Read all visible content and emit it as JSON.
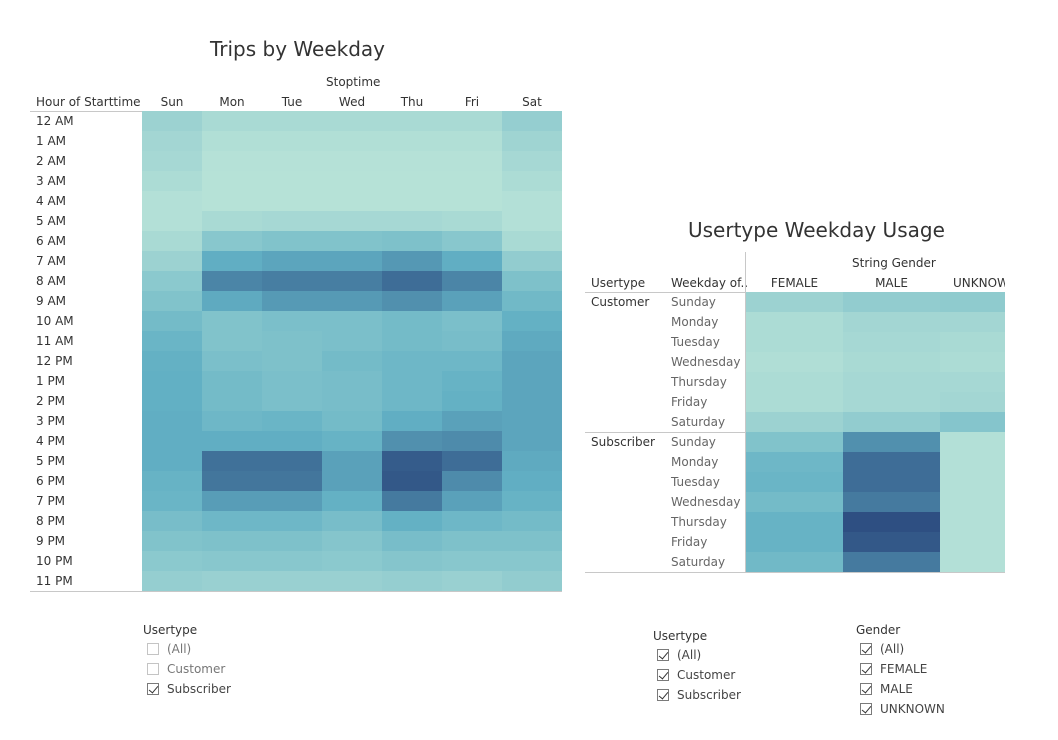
{
  "chart_data": [
    {
      "type": "heatmap",
      "title": "Trips by Weekday",
      "column_header": "Stoptime",
      "row_header": "Hour of Starttime",
      "columns": [
        "Sun",
        "Mon",
        "Tue",
        "Wed",
        "Thu",
        "Fri",
        "Sat"
      ],
      "rows": [
        "12 AM",
        "1 AM",
        "2 AM",
        "3 AM",
        "4 AM",
        "5 AM",
        "6 AM",
        "7 AM",
        "8 AM",
        "9 AM",
        "10 AM",
        "11 AM",
        "12 PM",
        "1 PM",
        "2 PM",
        "3 PM",
        "4 PM",
        "5 PM",
        "6 PM",
        "7 PM",
        "8 PM",
        "9 PM",
        "10 PM",
        "11 PM"
      ],
      "values": [
        [
          0.2,
          0.12,
          0.12,
          0.12,
          0.12,
          0.12,
          0.24
        ],
        [
          0.16,
          0.07,
          0.07,
          0.07,
          0.07,
          0.07,
          0.18
        ],
        [
          0.14,
          0.05,
          0.05,
          0.05,
          0.05,
          0.05,
          0.14
        ],
        [
          0.1,
          0.04,
          0.04,
          0.04,
          0.04,
          0.04,
          0.1
        ],
        [
          0.06,
          0.04,
          0.04,
          0.04,
          0.04,
          0.04,
          0.06
        ],
        [
          0.06,
          0.12,
          0.14,
          0.14,
          0.14,
          0.12,
          0.06
        ],
        [
          0.12,
          0.32,
          0.36,
          0.36,
          0.38,
          0.32,
          0.12
        ],
        [
          0.2,
          0.56,
          0.6,
          0.6,
          0.66,
          0.56,
          0.26
        ],
        [
          0.3,
          0.75,
          0.78,
          0.78,
          0.86,
          0.75,
          0.38
        ],
        [
          0.36,
          0.58,
          0.65,
          0.65,
          0.7,
          0.62,
          0.46
        ],
        [
          0.44,
          0.36,
          0.4,
          0.4,
          0.44,
          0.4,
          0.54
        ],
        [
          0.5,
          0.36,
          0.38,
          0.4,
          0.44,
          0.42,
          0.58
        ],
        [
          0.54,
          0.4,
          0.38,
          0.44,
          0.48,
          0.48,
          0.6
        ],
        [
          0.55,
          0.44,
          0.4,
          0.42,
          0.48,
          0.52,
          0.6
        ],
        [
          0.55,
          0.44,
          0.4,
          0.42,
          0.48,
          0.54,
          0.6
        ],
        [
          0.56,
          0.48,
          0.5,
          0.44,
          0.56,
          0.62,
          0.6
        ],
        [
          0.56,
          0.56,
          0.56,
          0.52,
          0.7,
          0.72,
          0.6
        ],
        [
          0.56,
          0.84,
          0.84,
          0.62,
          0.94,
          0.86,
          0.58
        ],
        [
          0.52,
          0.82,
          0.82,
          0.62,
          0.96,
          0.72,
          0.56
        ],
        [
          0.5,
          0.64,
          0.64,
          0.54,
          0.8,
          0.62,
          0.52
        ],
        [
          0.42,
          0.48,
          0.48,
          0.42,
          0.54,
          0.48,
          0.44
        ],
        [
          0.36,
          0.38,
          0.38,
          0.34,
          0.42,
          0.38,
          0.38
        ],
        [
          0.3,
          0.32,
          0.32,
          0.3,
          0.34,
          0.32,
          0.32
        ],
        [
          0.24,
          0.22,
          0.22,
          0.22,
          0.24,
          0.22,
          0.26
        ]
      ]
    },
    {
      "type": "heatmap",
      "title": "Usertype Weekday Usage",
      "column_header": "String Gender",
      "row_headers": [
        "Usertype",
        "Weekday of.."
      ],
      "columns": [
        "FEMALE",
        "MALE",
        "UNKNOW"
      ],
      "groups": [
        {
          "name": "Customer",
          "rows": [
            "Sunday",
            "Monday",
            "Tuesday",
            "Wednesday",
            "Thursday",
            "Friday",
            "Saturday"
          ],
          "values": [
            [
              0.2,
              0.26,
              0.28
            ],
            [
              0.1,
              0.16,
              0.16
            ],
            [
              0.1,
              0.14,
              0.12
            ],
            [
              0.08,
              0.12,
              0.1
            ],
            [
              0.1,
              0.14,
              0.14
            ],
            [
              0.1,
              0.14,
              0.16
            ],
            [
              0.2,
              0.26,
              0.34
            ]
          ]
        },
        {
          "name": "Subscriber",
          "rows": [
            "Sunday",
            "Monday",
            "Tuesday",
            "Wednesday",
            "Thursday",
            "Friday",
            "Saturday"
          ],
          "values": [
            [
              0.36,
              0.7,
              0.06
            ],
            [
              0.48,
              0.86,
              0.06
            ],
            [
              0.5,
              0.86,
              0.06
            ],
            [
              0.44,
              0.8,
              0.06
            ],
            [
              0.52,
              1.0,
              0.06
            ],
            [
              0.52,
              0.96,
              0.06
            ],
            [
              0.46,
              0.8,
              0.06
            ]
          ]
        }
      ]
    }
  ],
  "filters": {
    "left_usertype": {
      "title": "Usertype",
      "items": [
        {
          "label": "(All)",
          "checked": false
        },
        {
          "label": "Customer",
          "checked": false
        },
        {
          "label": "Subscriber",
          "checked": true
        }
      ]
    },
    "right_usertype": {
      "title": "Usertype",
      "items": [
        {
          "label": "(All)",
          "checked": true
        },
        {
          "label": "Customer",
          "checked": true
        },
        {
          "label": "Subscriber",
          "checked": true
        }
      ]
    },
    "gender": {
      "title": "Gender",
      "items": [
        {
          "label": "(All)",
          "checked": true
        },
        {
          "label": "FEMALE",
          "checked": true
        },
        {
          "label": "MALE",
          "checked": true
        },
        {
          "label": "UNKNOWN",
          "checked": true
        }
      ]
    }
  },
  "colors": {
    "scale_low": "#bde6d9",
    "scale_mid": "#62b0c4",
    "scale_high": "#2e4f82"
  }
}
